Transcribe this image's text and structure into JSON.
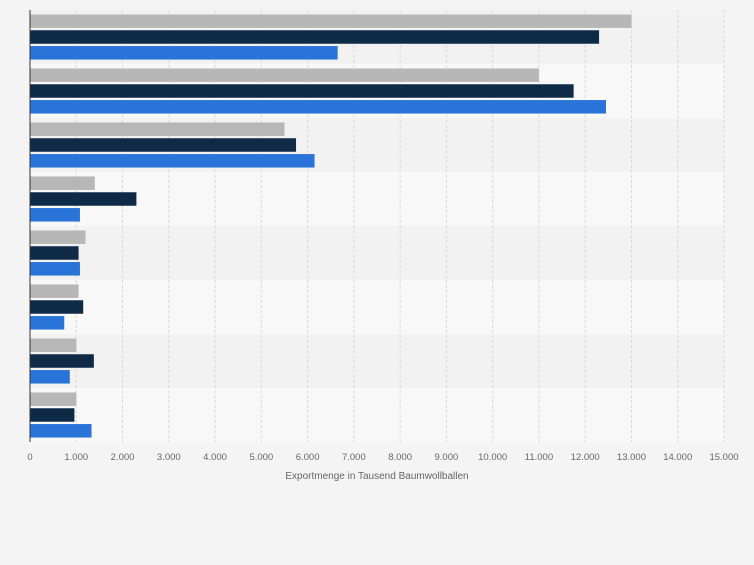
{
  "chart_data": {
    "type": "bar",
    "orientation": "horizontal",
    "xlabel": "Exportmenge in Tausend Baumwollballen",
    "xlim": [
      0,
      15000
    ],
    "x_ticks": [
      0,
      1000,
      2000,
      3000,
      4000,
      5000,
      6000,
      7000,
      8000,
      9000,
      10000,
      11000,
      12000,
      13000,
      14000,
      15000
    ],
    "x_tick_labels": [
      "0",
      "1.000",
      "2.000",
      "3.000",
      "4.000",
      "5.000",
      "6.000",
      "7.000",
      "8.000",
      "9.000",
      "10.000",
      "11.000",
      "12.000",
      "13.000",
      "14.000",
      "15.000"
    ],
    "categories": [
      "",
      "",
      "",
      "",
      "",
      "",
      "",
      ""
    ],
    "grid": true,
    "series": [
      {
        "color": "#b7b7b7",
        "values": [
          13000,
          11000,
          5500,
          1400,
          1200,
          1050,
          1000,
          1000
        ]
      },
      {
        "color": "#0e2a47",
        "values": [
          12300,
          11750,
          5750,
          2300,
          1050,
          1150,
          1380,
          960
        ]
      },
      {
        "color": "#2a74d9",
        "values": [
          6650,
          12450,
          6150,
          1080,
          1080,
          740,
          860,
          1330
        ]
      }
    ]
  }
}
